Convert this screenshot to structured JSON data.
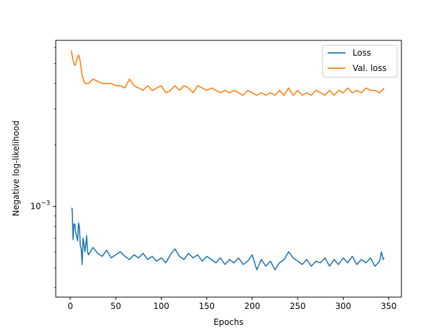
{
  "chart_data": {
    "type": "line",
    "title": "",
    "xlabel": "Epochs",
    "ylabel": "Negative log-likelihood",
    "xlim": [
      -16,
      364
    ],
    "ylim": [
      0.00036,
      0.0065
    ],
    "yscale": "log",
    "x_ticks": [
      0,
      50,
      100,
      150,
      200,
      250,
      300,
      350
    ],
    "y_tick_value": 0.001,
    "y_tick_label": "10^-3",
    "grid": false,
    "legend": "top-right",
    "series": [
      {
        "name": "Loss",
        "color": "#1f77b4",
        "x": [
          1,
          2,
          3,
          4,
          5,
          6,
          7,
          8,
          9,
          10,
          11,
          12,
          13,
          14,
          15,
          16,
          17,
          18,
          19,
          20,
          25,
          30,
          35,
          40,
          45,
          50,
          55,
          60,
          65,
          70,
          75,
          80,
          85,
          90,
          95,
          100,
          105,
          110,
          115,
          120,
          125,
          130,
          135,
          140,
          145,
          150,
          155,
          160,
          165,
          170,
          175,
          180,
          185,
          190,
          195,
          200,
          205,
          210,
          215,
          220,
          225,
          230,
          235,
          240,
          245,
          250,
          255,
          260,
          265,
          270,
          275,
          280,
          285,
          290,
          295,
          300,
          305,
          310,
          315,
          320,
          325,
          330,
          335,
          340,
          342,
          344,
          345
        ],
        "y": [
          0.00098,
          0.00098,
          0.00069,
          0.00082,
          0.00082,
          0.00074,
          0.00071,
          0.00068,
          0.00083,
          0.0008,
          0.00064,
          0.00062,
          0.00052,
          0.0007,
          0.00066,
          0.0006,
          0.00065,
          0.00072,
          0.0006,
          0.00058,
          0.00063,
          0.00059,
          0.00057,
          0.00061,
          0.00056,
          0.00058,
          0.0006,
          0.00057,
          0.00055,
          0.00058,
          0.00056,
          0.00059,
          0.00055,
          0.00057,
          0.00054,
          0.00056,
          0.00053,
          0.00058,
          0.00062,
          0.00057,
          0.00055,
          0.00059,
          0.00056,
          0.00058,
          0.00054,
          0.00057,
          0.00055,
          0.00053,
          0.00056,
          0.00052,
          0.00055,
          0.00053,
          0.00056,
          0.00052,
          0.00054,
          0.00058,
          0.00049,
          0.00055,
          0.00051,
          0.00054,
          0.00049,
          0.00053,
          0.00055,
          0.0006,
          0.00056,
          0.00054,
          0.00052,
          0.00055,
          0.00051,
          0.00054,
          0.00053,
          0.00056,
          0.00051,
          0.00055,
          0.00052,
          0.00056,
          0.00053,
          0.00057,
          0.00052,
          0.00055,
          0.00053,
          0.00056,
          0.00051,
          0.00054,
          0.0006,
          0.00055,
          0.00056
        ]
      },
      {
        "name": "Val. loss",
        "color": "#ff7f0e",
        "x": [
          1,
          2,
          3,
          4,
          5,
          6,
          7,
          8,
          9,
          10,
          11,
          12,
          13,
          14,
          15,
          16,
          17,
          18,
          20,
          25,
          30,
          35,
          40,
          45,
          50,
          55,
          60,
          65,
          70,
          75,
          80,
          85,
          90,
          95,
          100,
          105,
          110,
          115,
          120,
          125,
          130,
          135,
          140,
          145,
          150,
          155,
          160,
          165,
          170,
          175,
          180,
          185,
          190,
          195,
          200,
          205,
          210,
          215,
          220,
          225,
          230,
          235,
          240,
          245,
          250,
          255,
          260,
          265,
          270,
          275,
          280,
          285,
          290,
          295,
          300,
          305,
          310,
          315,
          320,
          325,
          330,
          335,
          340,
          345
        ],
        "y": [
          0.0058,
          0.0055,
          0.0052,
          0.005,
          0.0049,
          0.005,
          0.0052,
          0.0054,
          0.0055,
          0.0054,
          0.0051,
          0.0047,
          0.0044,
          0.0042,
          0.0041,
          0.004,
          0.004,
          0.004,
          0.004,
          0.0042,
          0.0041,
          0.004,
          0.004,
          0.004,
          0.0039,
          0.0039,
          0.0038,
          0.0042,
          0.0039,
          0.0038,
          0.0037,
          0.0039,
          0.0037,
          0.0038,
          0.0039,
          0.0036,
          0.0037,
          0.0039,
          0.0037,
          0.0039,
          0.0038,
          0.0036,
          0.0039,
          0.0038,
          0.0037,
          0.0038,
          0.0037,
          0.0036,
          0.0037,
          0.0036,
          0.0037,
          0.0036,
          0.0035,
          0.0037,
          0.0036,
          0.0035,
          0.0036,
          0.0035,
          0.0036,
          0.0035,
          0.0037,
          0.0035,
          0.0038,
          0.0035,
          0.0037,
          0.0035,
          0.0036,
          0.0035,
          0.0037,
          0.0036,
          0.0035,
          0.0037,
          0.0035,
          0.0037,
          0.0036,
          0.0038,
          0.0036,
          0.0037,
          0.0036,
          0.0038,
          0.0037,
          0.0037,
          0.0036,
          0.0038
        ]
      }
    ]
  }
}
